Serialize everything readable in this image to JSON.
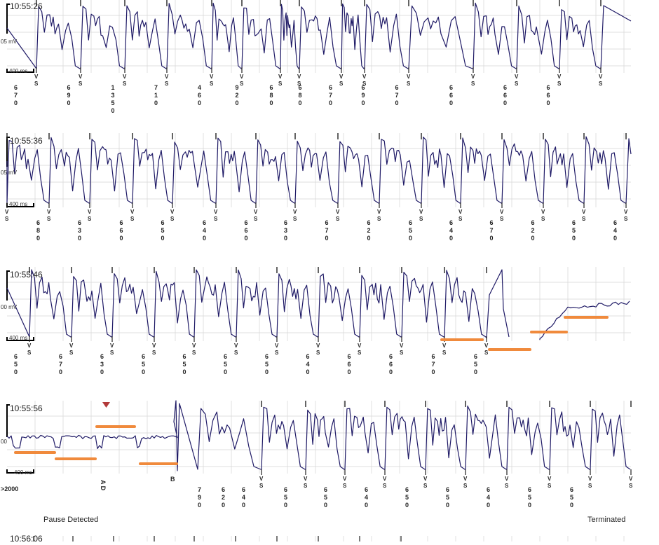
{
  "ui": {
    "trace_color": "#1f1a66",
    "grid_color": "#d4d4d4",
    "marker_color": "#222222",
    "highlight_color": "#f08a3c",
    "flag_color": "#b23a3a"
  },
  "chart_data": {
    "type": "line",
    "title": "",
    "xlabel": "",
    "ylabel": "",
    "x_unit": "ms",
    "y_unit": "mV",
    "grid": true,
    "legend": "none",
    "strips": [
      {
        "time": "10:55:26",
        "amp_label": "05 mV",
        "scale_label": "400 ms",
        "markers": [
          {
            "label": "V S",
            "rr": "670"
          },
          {
            "label": "V S",
            "rr": "690"
          },
          {
            "label": "V S",
            "rr": "1350"
          },
          {
            "label": "V S",
            "rr": "710"
          },
          {
            "label": "V S",
            "rr": "460"
          },
          {
            "label": "V S",
            "rr": "920"
          },
          {
            "label": "V S",
            "rr": "680"
          },
          {
            "label": "V S",
            "rr": "680"
          },
          {
            "label": "V S",
            "rr": "670"
          },
          {
            "label": "V S",
            "rr": "690"
          },
          {
            "label": "V S",
            "rr": "670"
          },
          {
            "label": "V S",
            "rr": "660"
          },
          {
            "label": "V S",
            "rr": "660"
          },
          {
            "label": "V S",
            "rr": "660"
          }
        ]
      },
      {
        "time": "10:55:36",
        "amp_label": "05 mV",
        "scale_label": "400 ms",
        "markers": [
          {
            "label": "V S",
            "rr": "680"
          },
          {
            "label": "V S",
            "rr": "630"
          },
          {
            "label": "V S",
            "rr": "660"
          },
          {
            "label": "V S",
            "rr": "650"
          },
          {
            "label": "V S",
            "rr": "640"
          },
          {
            "label": "V S",
            "rr": "660"
          },
          {
            "label": "V S",
            "rr": "630"
          },
          {
            "label": "V S",
            "rr": "670"
          },
          {
            "label": "V S",
            "rr": "620"
          },
          {
            "label": "V S",
            "rr": "650"
          },
          {
            "label": "V S",
            "rr": "640"
          },
          {
            "label": "V S",
            "rr": "670"
          },
          {
            "label": "V S",
            "rr": "620"
          },
          {
            "label": "V S",
            "rr": "650"
          },
          {
            "label": "V S",
            "rr": "640"
          }
        ]
      },
      {
        "time": "10:55:46",
        "amp_label": "00 mV",
        "scale_label": "400 ms",
        "markers": [
          {
            "label": "V S",
            "rr": "650"
          },
          {
            "label": "V S",
            "rr": "670"
          },
          {
            "label": "V S",
            "rr": "630"
          },
          {
            "label": "V S",
            "rr": "650"
          },
          {
            "label": "V S",
            "rr": "650"
          },
          {
            "label": "V S",
            "rr": "650"
          },
          {
            "label": "V S",
            "rr": "650"
          },
          {
            "label": "V S",
            "rr": "640"
          },
          {
            "label": "V S",
            "rr": "660"
          },
          {
            "label": "V S",
            "rr": "660"
          },
          {
            "label": "V S",
            "rr": "670"
          },
          {
            "label": "V S",
            "rr": "650"
          }
        ]
      },
      {
        "time": "10:55:56",
        "amp_label": "00",
        "scale_label": "400 ms",
        "first_interval": ">2000",
        "ad_label": "A D",
        "b_label": "B",
        "markers": [
          {
            "label": "V S",
            "rr": "790"
          },
          {
            "label": "V S",
            "rr": "620"
          },
          {
            "label": "V S",
            "rr": "640"
          },
          {
            "label": "V S",
            "rr": "650"
          },
          {
            "label": "V S",
            "rr": "650"
          },
          {
            "label": "V S",
            "rr": "640"
          },
          {
            "label": "V S",
            "rr": "650"
          },
          {
            "label": "V S",
            "rr": "650"
          },
          {
            "label": "V S",
            "rr": "640"
          },
          {
            "label": "V S",
            "rr": "650"
          },
          {
            "label": "V S",
            "rr": "650"
          }
        ],
        "left_caption": "Pause Detected",
        "right_caption": "Terminated"
      },
      {
        "time": "10:56:06"
      }
    ]
  }
}
